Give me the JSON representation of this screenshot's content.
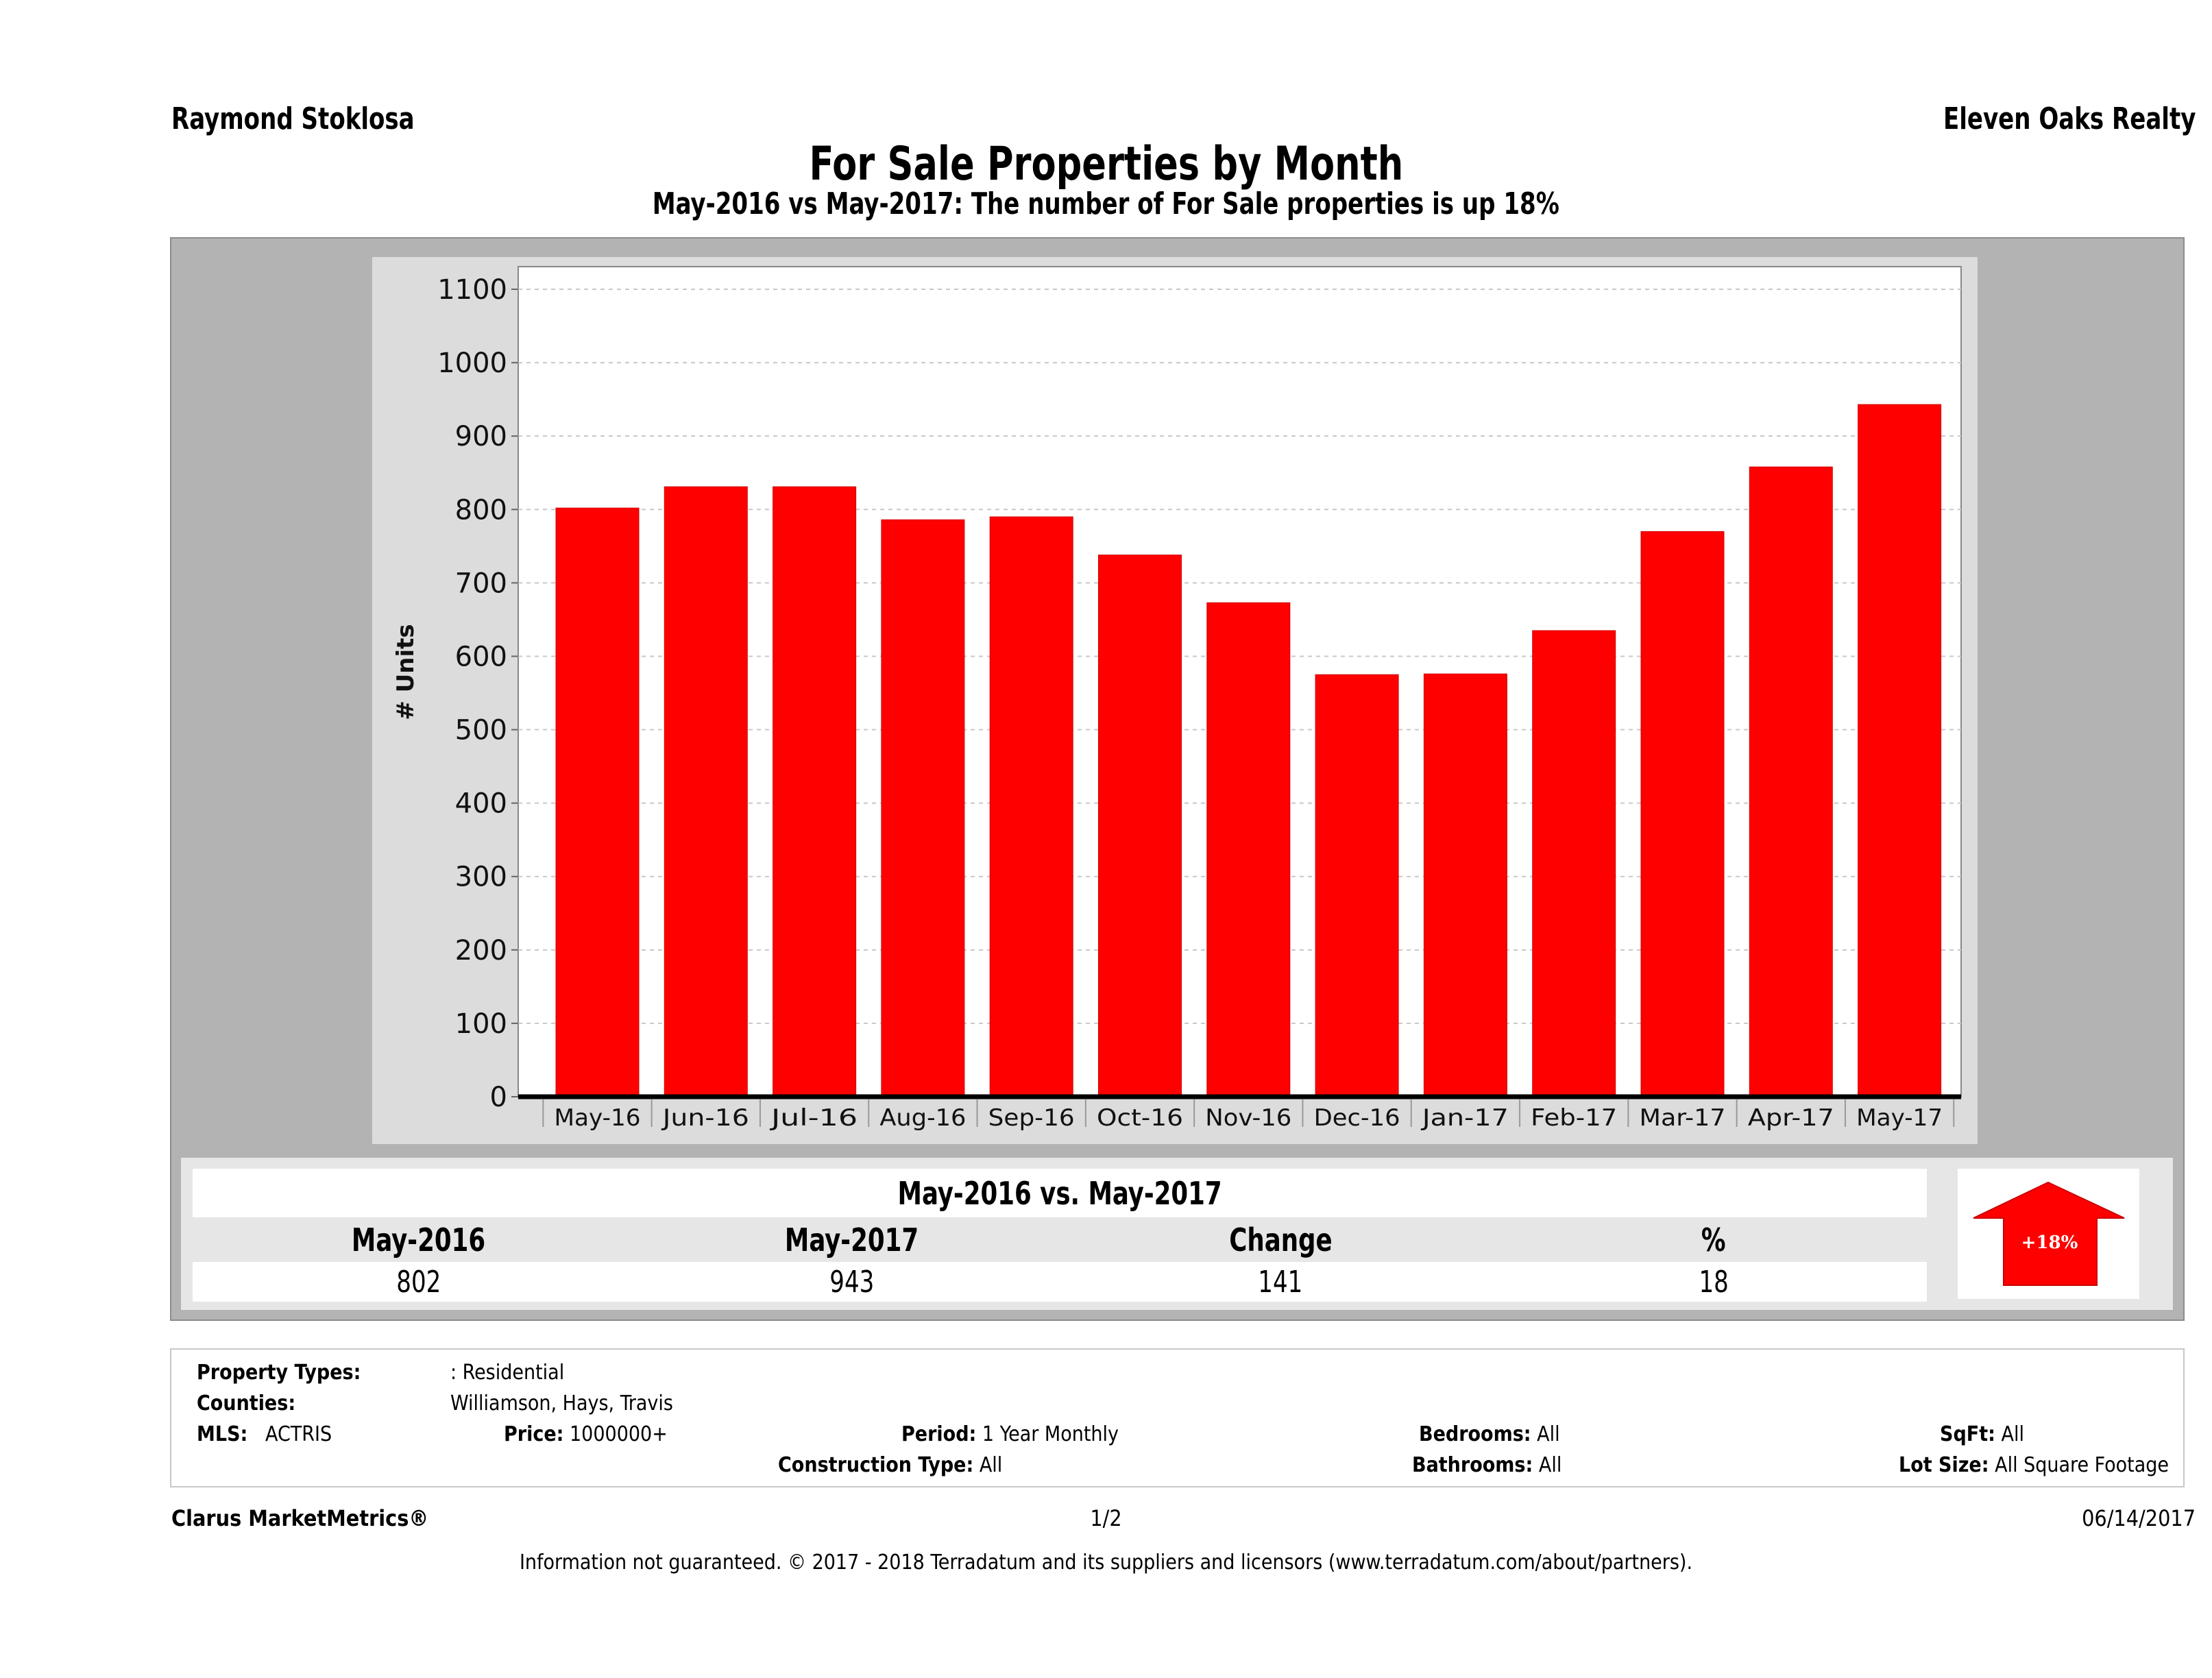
{
  "header": {
    "agent_name": "Raymond Stoklosa",
    "company_name": "Eleven Oaks Realty",
    "title": "For Sale Properties by Month",
    "subtitle": "May-2016 vs May-2017: The number of For Sale  properties is up 18%"
  },
  "chart_data": {
    "type": "bar",
    "title": "For Sale Properties by Month",
    "subtitle": "May-2016 vs May-2017: The number of For Sale  properties is up 18%",
    "xlabel": "",
    "ylabel": "# Units",
    "categories": [
      "May-16",
      "Jun-16",
      "Jul-16",
      "Aug-16",
      "Sep-16",
      "Oct-16",
      "Nov-16",
      "Dec-16",
      "Jan-17",
      "Feb-17",
      "Mar-17",
      "Apr-17",
      "May-17"
    ],
    "values": [
      802,
      831,
      831,
      786,
      790,
      738,
      673,
      575,
      576,
      635,
      770,
      858,
      943
    ],
    "ylim": [
      0,
      1100
    ],
    "yticks": [
      0,
      100,
      200,
      300,
      400,
      500,
      600,
      700,
      800,
      900,
      1000,
      1100
    ],
    "grid": true,
    "legend": "none",
    "bar_color": "#ff0000"
  },
  "summary": {
    "title": "May-2016 vs. May-2017",
    "headers": [
      "May-2016",
      "May-2017",
      "Change",
      "%"
    ],
    "values": [
      "802",
      "943",
      "141",
      "18"
    ],
    "badge_label": "+18%",
    "badge_icon": "up-arrow-icon",
    "badge_color": "#ff0000"
  },
  "criteria": {
    "property_types_label": "Property Types:",
    "property_types_value": ": Residential",
    "counties_label": "Counties:",
    "counties_value": "Williamson, Hays, Travis",
    "mls_label": "MLS:",
    "mls_value": "ACTRIS",
    "price_label": "Price:",
    "price_value": "1000000+",
    "period_label": "Period:",
    "period_value": "1 Year Monthly",
    "construction_label": "Construction Type:",
    "construction_value": "All",
    "bedrooms_label": "Bedrooms:",
    "bedrooms_value": "All",
    "bathrooms_label": "Bathrooms:",
    "bathrooms_value": "All",
    "sqft_label": "SqFt:",
    "sqft_value": "All",
    "lot_size_label": "Lot Size:",
    "lot_size_value": "All Square Footage"
  },
  "footer": {
    "brand": "Clarus MarketMetrics®",
    "page": "1/2",
    "date": "06/14/2017",
    "disclaimer": "Information not guaranteed. © 2017 - 2018 Terradatum and its suppliers and licensors (www.terradatum.com/about/partners)."
  }
}
